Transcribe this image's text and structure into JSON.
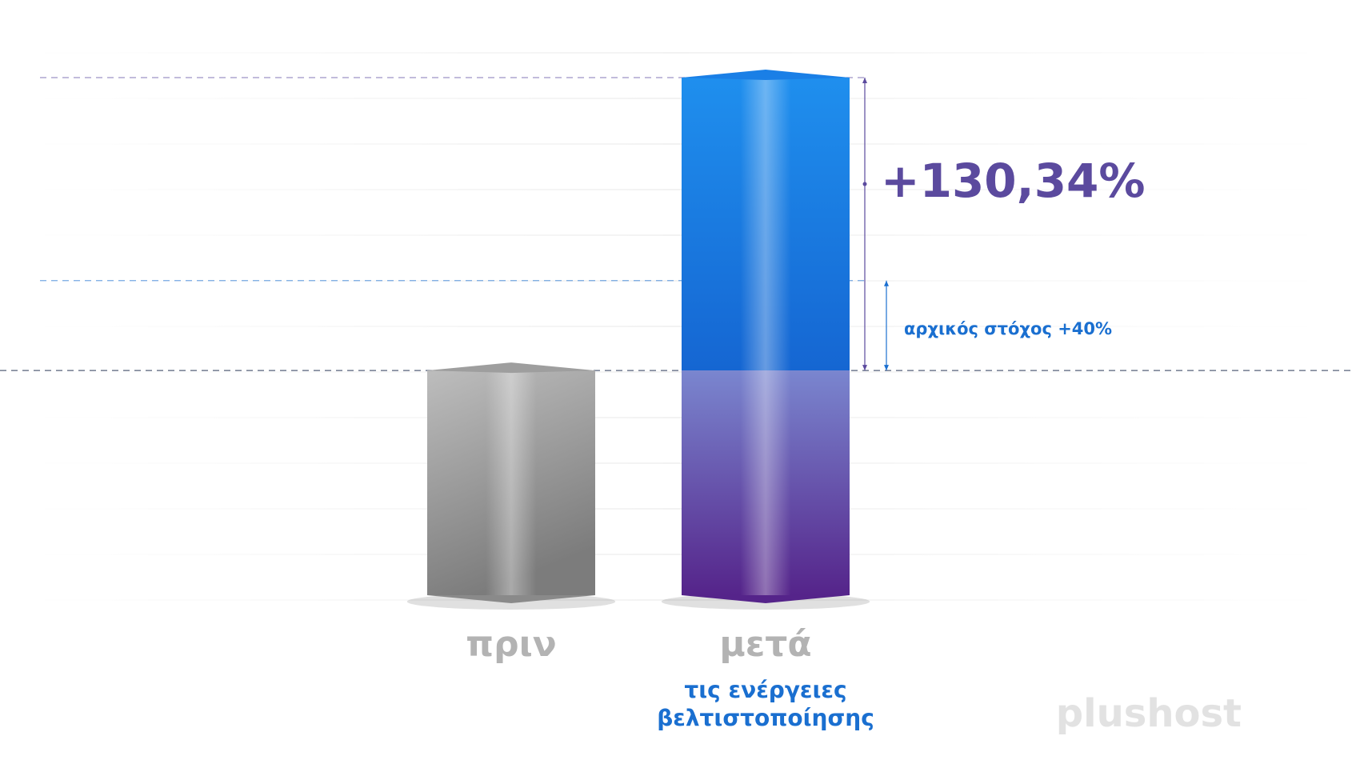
{
  "chart_data": {
    "type": "bar3d",
    "categories": [
      "πριν",
      "μετά"
    ],
    "category_sublabel": [
      "τις ενέργειες",
      "βελτιστοποίησης"
    ],
    "values": [
      100,
      230.34
    ],
    "colors": [
      "#a9a9a9",
      "#1f8fee",
      "#55248a"
    ],
    "annotations": [
      {
        "text": "+130,34%",
        "from": 100,
        "to": 230.34,
        "color": "#5b4a9e"
      },
      {
        "text": "αρχικός στόχος +40%",
        "from": 100,
        "to": 140,
        "color": "#1a6fd0"
      }
    ],
    "watermark": "plushost"
  }
}
